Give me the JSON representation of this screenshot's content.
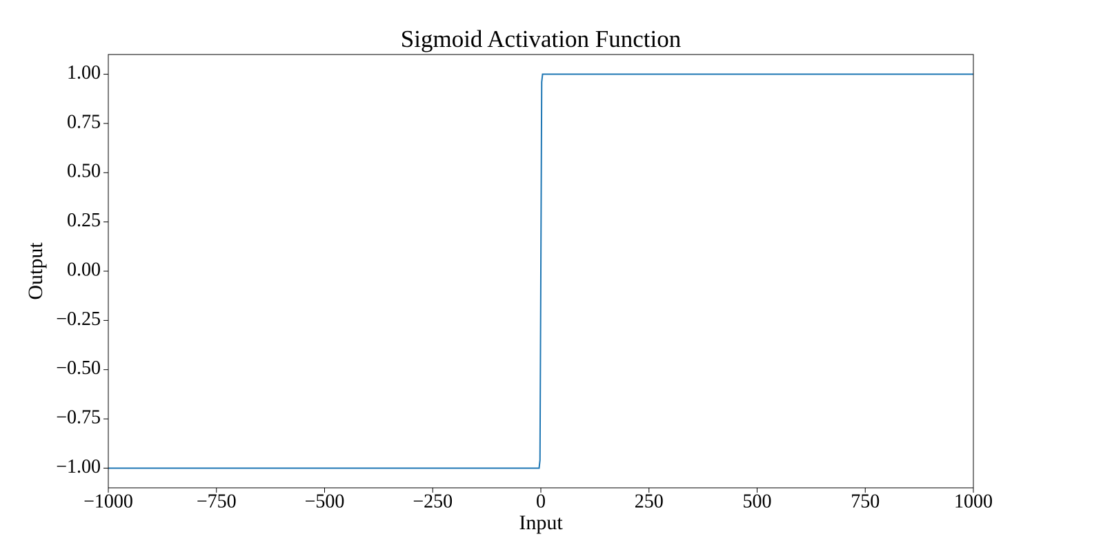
{
  "chart_data": {
    "type": "line",
    "title": "Sigmoid Activation Function",
    "x_label": "Input",
    "y_label": "Output",
    "x": [
      -1000,
      -4,
      -2,
      0,
      2,
      4,
      1000
    ],
    "series": [
      {
        "color": "#1f77b4",
        "values": [
          -1,
          -1,
          -0.96,
          0,
          0.96,
          1,
          1
        ]
      }
    ],
    "xlim": [
      -1000,
      1000
    ],
    "xticks": [
      {
        "value": -1000,
        "label": "−1000"
      },
      {
        "value": -750,
        "label": "−750"
      },
      {
        "value": -500,
        "label": "−500"
      },
      {
        "value": -250,
        "label": "−250"
      },
      0,
      250,
      500,
      750,
      1000
    ],
    "ylim": [
      -1.1,
      1.1
    ],
    "yticks": [
      {
        "value": -1,
        "label": "−1.00"
      },
      {
        "value": -0.75,
        "label": "−0.75"
      },
      {
        "value": -0.5,
        "label": "−0.50"
      },
      {
        "value": -0.25,
        "label": "−0.25"
      },
      {
        "value": 0,
        "label": "0.00"
      },
      0.25,
      {
        "value": 0.5,
        "label": "0.50"
      },
      0.75,
      {
        "value": 1,
        "label": "1.00"
      }
    ],
    "grid": false
  }
}
